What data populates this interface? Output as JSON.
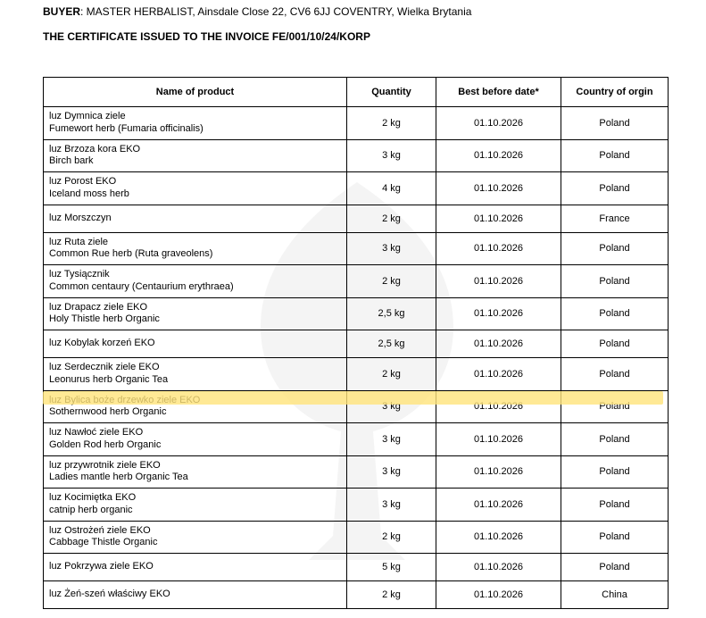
{
  "header": {
    "buyer_label": "BUYER",
    "buyer_value": ": MASTER HERBALIST, Ainsdale Close 22, CV6 6JJ COVENTRY, Wielka Brytania",
    "cert_line": "THE CERTIFICATE ISSUED TO THE INVOICE FE/001/10/24/KORP"
  },
  "table": {
    "columns": {
      "name": "Name of product",
      "qty": "Quantity",
      "bbd": "Best before date*",
      "country": "Country of orgin"
    },
    "rows": [
      {
        "line1": "luz Dymnica ziele",
        "line2": "Fumewort herb (Fumaria officinalis)",
        "qty": "2 kg",
        "bbd": "01.10.2026",
        "country": "Poland",
        "highlight": false
      },
      {
        "line1": "luz Brzoza kora EKO",
        "line2": "Birch bark",
        "qty": "3 kg",
        "bbd": "01.10.2026",
        "country": "Poland",
        "highlight": false
      },
      {
        "line1": "luz Porost EKO",
        "line2": "Iceland moss herb",
        "qty": "4 kg",
        "bbd": "01.10.2026",
        "country": "Poland",
        "highlight": false
      },
      {
        "line1": "luz Morszczyn",
        "line2": "",
        "qty": "2 kg",
        "bbd": "01.10.2026",
        "country": "France",
        "highlight": false
      },
      {
        "line1": "luz Ruta ziele",
        "line2": "Common Rue herb (Ruta graveolens)",
        "qty": "3 kg",
        "bbd": "01.10.2026",
        "country": "Poland",
        "highlight": false
      },
      {
        "line1": "luz Tysiącznik",
        "line2": "Common centaury (Centaurium erythraea)",
        "qty": "2 kg",
        "bbd": "01.10.2026",
        "country": "Poland",
        "highlight": false
      },
      {
        "line1": "luz Drapacz ziele EKO",
        "line2": "Holy Thistle herb Organic",
        "qty": "2,5 kg",
        "bbd": "01.10.2026",
        "country": "Poland",
        "highlight": false
      },
      {
        "line1": "luz Kobylak korzeń EKO",
        "line2": "",
        "qty": "2,5 kg",
        "bbd": "01.10.2026",
        "country": "Poland",
        "highlight": false
      },
      {
        "line1": "luz Serdecznik ziele EKO",
        "line2": "Leonurus herb Organic Tea",
        "qty": "2 kg",
        "bbd": "01.10.2026",
        "country": "Poland",
        "highlight": false
      },
      {
        "line1": "luz Bylica boże drzewko ziele EKO",
        "line2": "Sothernwood herb Organic",
        "qty": "3 kg",
        "bbd": "01.10.2026",
        "country": "Poland",
        "highlight": true
      },
      {
        "line1": "luz Nawłoć ziele EKO",
        "line2": "Golden Rod herb Organic",
        "qty": "3 kg",
        "bbd": "01.10.2026",
        "country": "Poland",
        "highlight": false
      },
      {
        "line1": "luz przywrotnik ziele EKO",
        "line2": "Ladies mantle herb Organic Tea",
        "qty": "3 kg",
        "bbd": "01.10.2026",
        "country": "Poland",
        "highlight": false
      },
      {
        "line1": "luz Kocimiętka EKO",
        "line2": "catnip herb organic",
        "qty": "3 kg",
        "bbd": "01.10.2026",
        "country": "Poland",
        "highlight": false
      },
      {
        "line1": "luz Ostrożeń ziele EKO",
        "line2": "Cabbage Thistle Organic",
        "qty": "2 kg",
        "bbd": "01.10.2026",
        "country": "Poland",
        "highlight": false
      },
      {
        "line1": "luz Pokrzywa ziele EKO",
        "line2": "",
        "qty": "5 kg",
        "bbd": "01.10.2026",
        "country": "Poland",
        "highlight": false
      },
      {
        "line1": "luz Żeń-szeń właściwy EKO",
        "line2": "",
        "qty": "2 kg",
        "bbd": "01.10.2026",
        "country": "China",
        "highlight": false
      }
    ]
  },
  "style": {
    "highlight_color": "#ffe37a",
    "border_color": "#000000",
    "text_color": "#000000",
    "background": "#ffffff"
  }
}
